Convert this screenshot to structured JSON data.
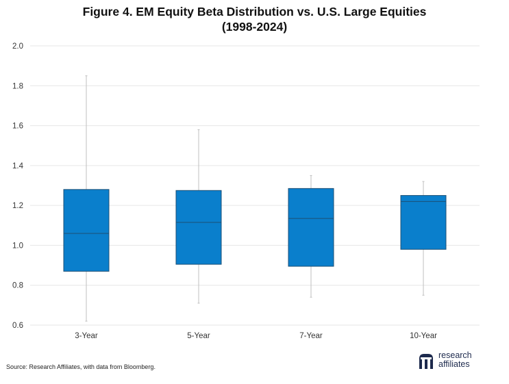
{
  "title_line1": "Figure 4. EM Equity Beta Distribution vs. U.S. Large Equities",
  "title_line2": "(1998-2024)",
  "source": "Source: Research Affiliates, with data from Bloomberg.",
  "logo": {
    "line1": "research",
    "line2": "affiliates",
    "color": "#1d2a4d"
  },
  "colors": {
    "box_fill": "#0a7fcc",
    "box_stroke": "#1d4f74",
    "grid": "#e6e6e6",
    "whisker": "#bfbfbf"
  },
  "chart_data": {
    "type": "box",
    "categories": [
      "3-Year",
      "5-Year",
      "7-Year",
      "10-Year"
    ],
    "boxes": [
      {
        "category": "3-Year",
        "min": 0.62,
        "q1": 0.87,
        "median": 1.06,
        "q3": 1.28,
        "max": 1.85
      },
      {
        "category": "5-Year",
        "min": 0.71,
        "q1": 0.905,
        "median": 1.115,
        "q3": 1.275,
        "max": 1.58
      },
      {
        "category": "7-Year",
        "min": 0.74,
        "q1": 0.895,
        "median": 1.135,
        "q3": 1.285,
        "max": 1.35
      },
      {
        "category": "10-Year",
        "min": 0.75,
        "q1": 0.98,
        "median": 1.22,
        "q3": 1.25,
        "max": 1.32
      }
    ],
    "ylim": [
      0.6,
      2.0
    ],
    "yticks": [
      "0.6",
      "0.8",
      "1.0",
      "1.2",
      "1.4",
      "1.6",
      "1.8",
      "2.0"
    ],
    "grid": true
  }
}
